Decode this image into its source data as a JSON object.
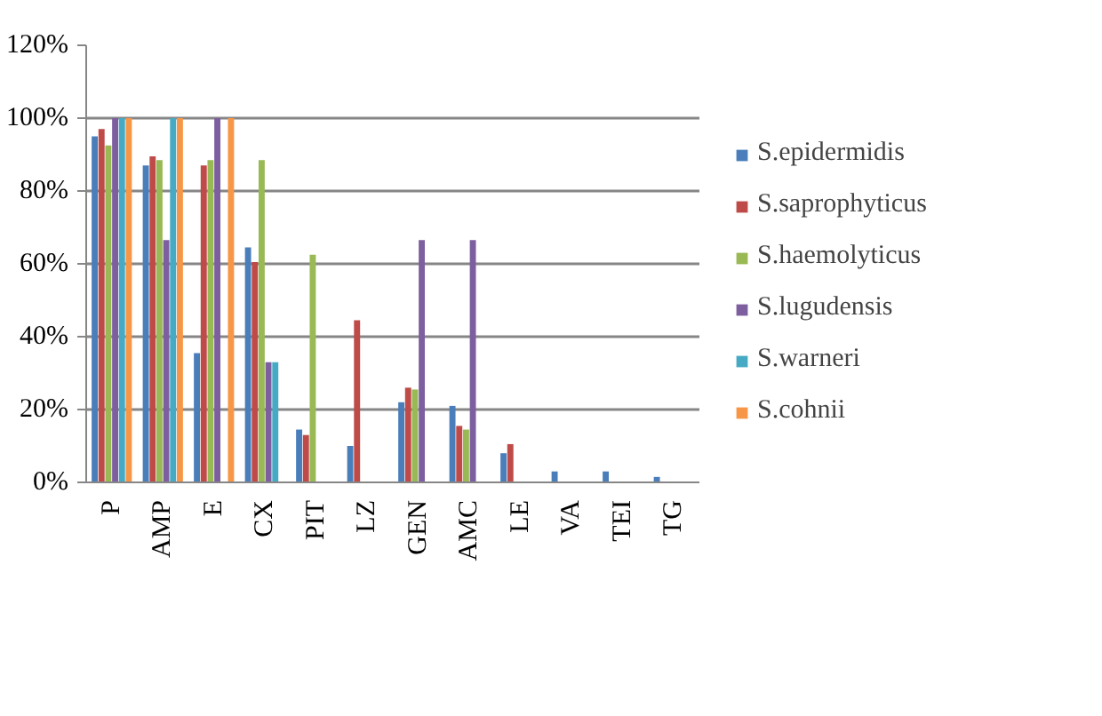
{
  "chart_data": {
    "type": "bar",
    "categories": [
      "P",
      "AMP",
      "E",
      "CX",
      "PIT",
      "LZ",
      "GEN",
      "AMC",
      "LE",
      "VA",
      "TEI",
      "TG"
    ],
    "ylim": [
      0,
      120
    ],
    "yticks": [
      {
        "value": 0,
        "label": "0%"
      },
      {
        "value": 20,
        "label": "20%"
      },
      {
        "value": 40,
        "label": "40%"
      },
      {
        "value": 60,
        "label": "60%"
      },
      {
        "value": 80,
        "label": "80%"
      },
      {
        "value": 100,
        "label": "100%"
      },
      {
        "value": 120,
        "label": "120%"
      }
    ],
    "grid": "y",
    "legend": "right",
    "series": [
      {
        "name": "S.epidermidis",
        "color": "#4a7ebb",
        "values": [
          95,
          87,
          35.5,
          64.5,
          14.5,
          10,
          22,
          21,
          8,
          3,
          3,
          1.5
        ]
      },
      {
        "name": "S.saprophyticus",
        "color": "#be4b48",
        "values": [
          97,
          89.5,
          87,
          60.5,
          13,
          44.5,
          26,
          15.5,
          10.5,
          0,
          0,
          0
        ]
      },
      {
        "name": "S.haemolyticus",
        "color": "#98b954",
        "values": [
          92.5,
          88.5,
          88.5,
          88.5,
          62.5,
          0,
          25.5,
          14.5,
          0,
          0,
          0,
          0
        ]
      },
      {
        "name": "S.lugudensis",
        "color": "#7d5fa0",
        "values": [
          100,
          66.5,
          100,
          33,
          0,
          0,
          66.5,
          66.5,
          0,
          0,
          0,
          0
        ]
      },
      {
        "name": "S.warneri",
        "color": "#46aac5",
        "values": [
          100,
          100,
          0,
          33,
          0,
          0,
          0,
          0,
          0,
          0,
          0,
          0
        ]
      },
      {
        "name": "S.cohnii",
        "color": "#f79646",
        "values": [
          100,
          100,
          100,
          0,
          0,
          0,
          0,
          0,
          0,
          0,
          0,
          0
        ]
      }
    ]
  }
}
